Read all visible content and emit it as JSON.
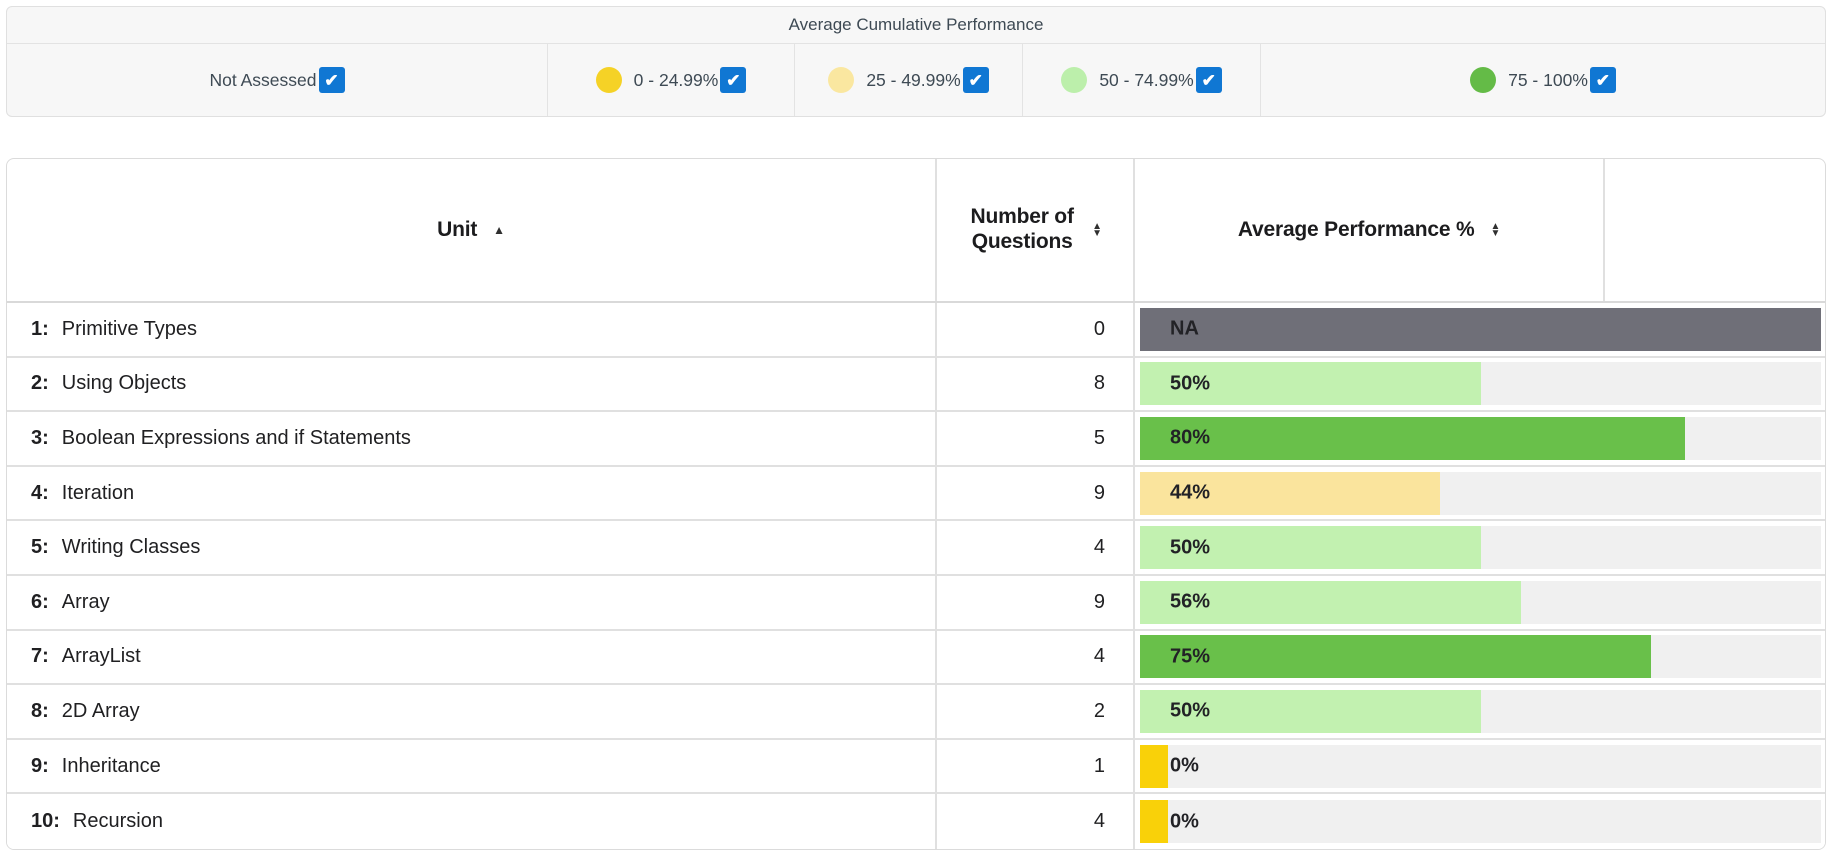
{
  "panel": {
    "title": "Average Cumulative Performance"
  },
  "legend": {
    "items": [
      {
        "label": "Not Assessed",
        "dot_color": null,
        "checked": true
      },
      {
        "label": "0 - 24.99%",
        "dot_color": "#F5D226",
        "checked": true
      },
      {
        "label": "25 - 49.99%",
        "dot_color": "#FAE7A0",
        "checked": true
      },
      {
        "label": "50 - 74.99%",
        "dot_color": "#BCEFAB",
        "checked": true
      },
      {
        "label": "75 - 100%",
        "dot_color": "#64BB47",
        "checked": true
      }
    ]
  },
  "table": {
    "headers": {
      "unit": {
        "label": "Unit",
        "sort": "asc"
      },
      "questions": {
        "label": "Number of Questions",
        "sort": "both"
      },
      "performance": {
        "label": "Average Performance %",
        "sort": "both"
      },
      "blank": {
        "label": ""
      }
    },
    "rows": [
      {
        "num": "1:",
        "name": "Primitive Types",
        "questions": "0",
        "performance_label": "NA",
        "performance_value": null,
        "bar_color": "#6F6F78"
      },
      {
        "num": "2:",
        "name": "Using Objects",
        "questions": "8",
        "performance_label": "50%",
        "performance_value": 50,
        "bar_color": "#C2F1B0"
      },
      {
        "num": "3:",
        "name": "Boolean Expressions and if Statements",
        "questions": "5",
        "performance_label": "80%",
        "performance_value": 80,
        "bar_color": "#69C04A"
      },
      {
        "num": "4:",
        "name": "Iteration",
        "questions": "9",
        "performance_label": "44%",
        "performance_value": 44,
        "bar_color": "#FAE49D"
      },
      {
        "num": "5:",
        "name": "Writing Classes",
        "questions": "4",
        "performance_label": "50%",
        "performance_value": 50,
        "bar_color": "#C2F1B0"
      },
      {
        "num": "6:",
        "name": "Array",
        "questions": "9",
        "performance_label": "56%",
        "performance_value": 56,
        "bar_color": "#C2F1B0"
      },
      {
        "num": "7:",
        "name": "ArrayList",
        "questions": "4",
        "performance_label": "75%",
        "performance_value": 75,
        "bar_color": "#69C04A"
      },
      {
        "num": "8:",
        "name": "2D Array",
        "questions": "2",
        "performance_label": "50%",
        "performance_value": 50,
        "bar_color": "#C2F1B0"
      },
      {
        "num": "9:",
        "name": "Inheritance",
        "questions": "1",
        "performance_label": "0%",
        "performance_value": 0,
        "bar_color": "#F9D109"
      },
      {
        "num": "10:",
        "name": "Recursion",
        "questions": "4",
        "performance_label": "0%",
        "performance_value": 0,
        "bar_color": "#F9D109"
      }
    ]
  },
  "icons": {
    "sort_asc": "▲",
    "sort_up": "▲",
    "sort_down": "▼",
    "check": "✔"
  },
  "colors": {
    "checkbox_blue": "#1077D3",
    "na_gray": "#6F6F78",
    "track_gray": "#F0F0F0",
    "gold": "#F9D109",
    "pale_yellow": "#FAE49D",
    "light_green": "#C2F1B0",
    "green": "#69C04A",
    "panel_text": "#3E4A54",
    "min_bar_pct": 4.1
  }
}
